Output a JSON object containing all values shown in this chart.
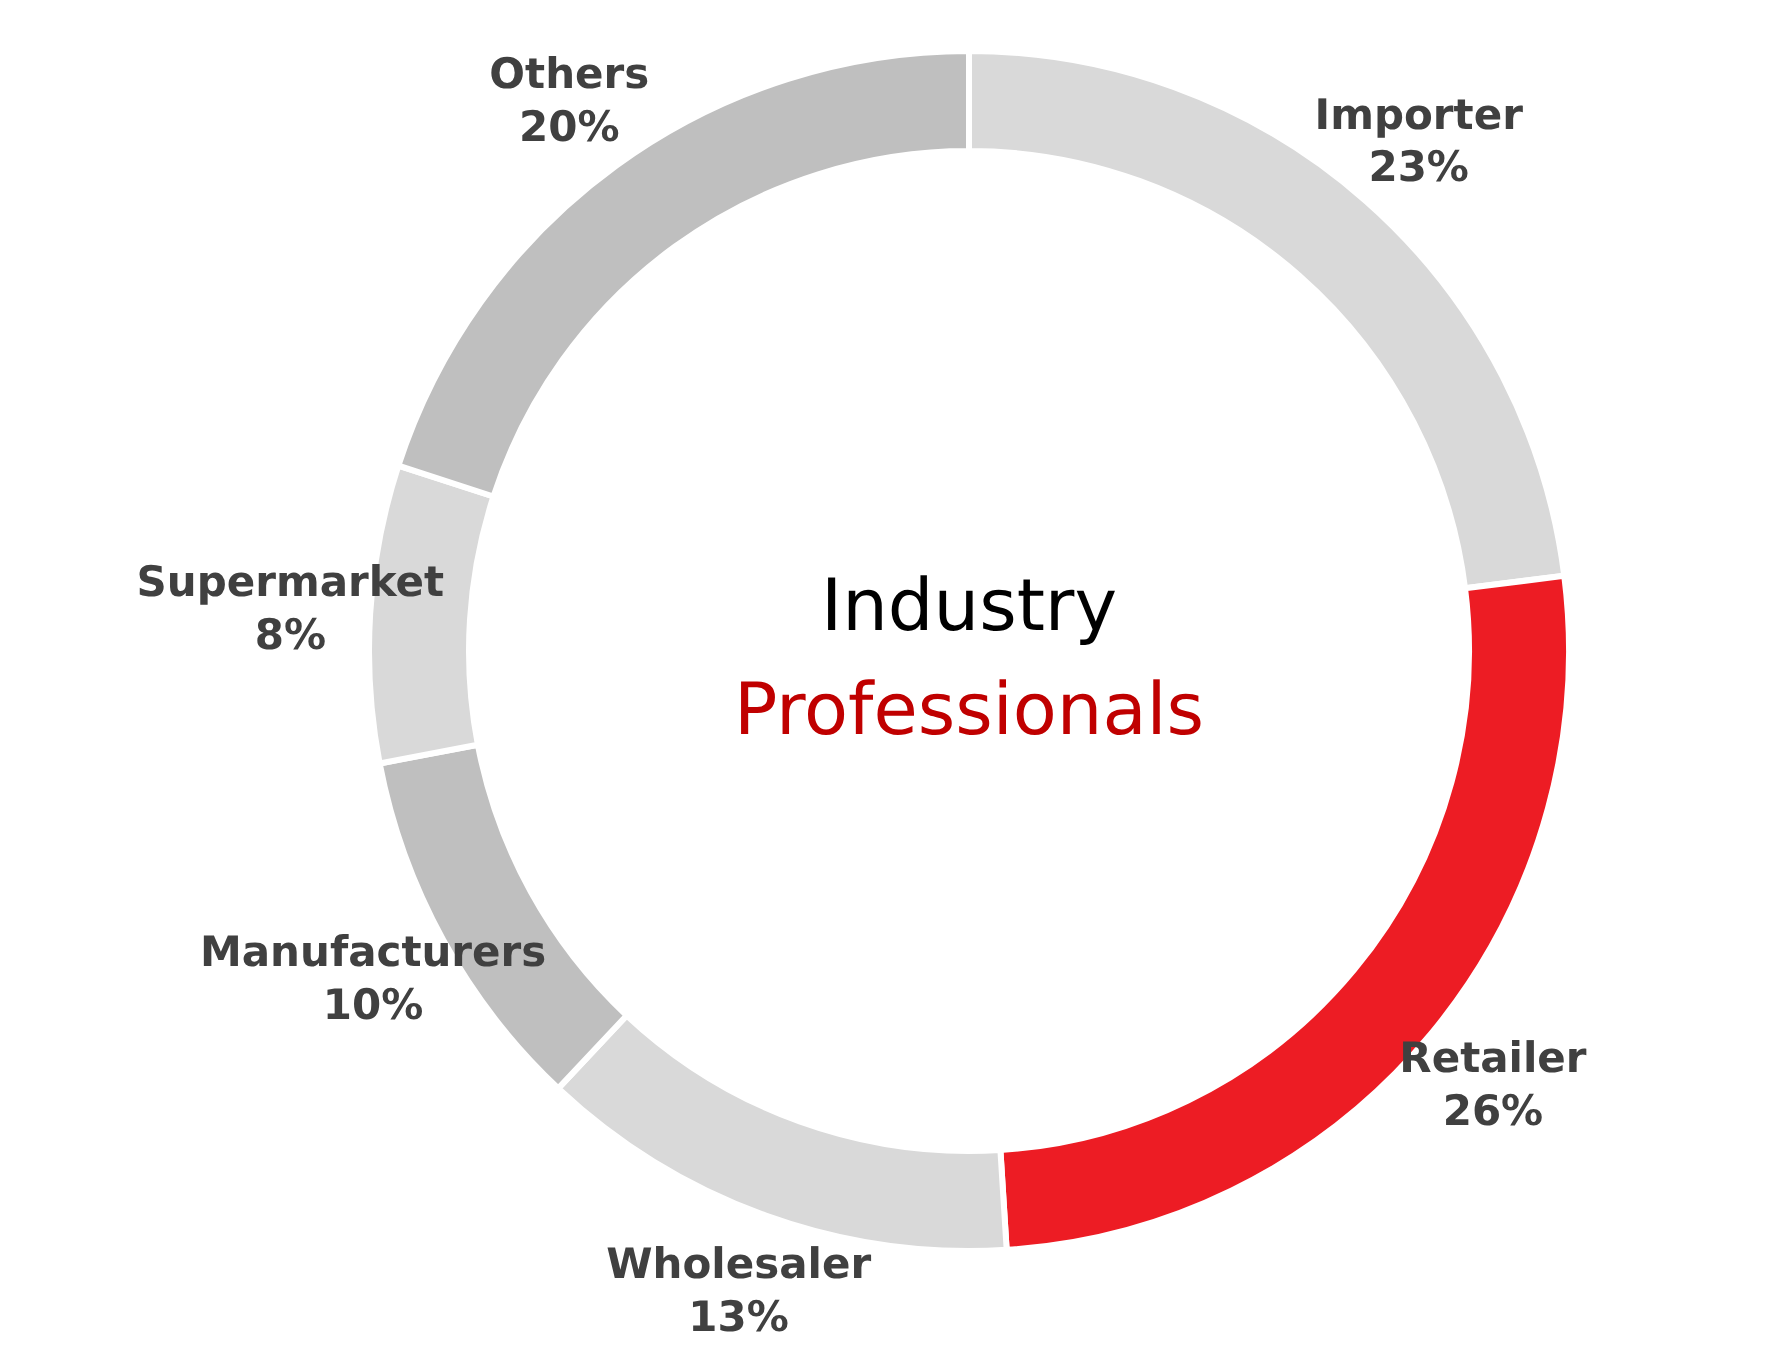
{
  "chart_data": {
    "type": "donut",
    "title": "Industry",
    "subtitle": "Professionals",
    "categories": [
      "Importer",
      "Retailer",
      "Wholesaler",
      "Manufacturers",
      "Supermarket",
      "Others"
    ],
    "values": [
      23,
      26,
      13,
      10,
      8,
      20
    ],
    "colors": [
      "#d9d9d9",
      "#ed1c24",
      "#d9d9d9",
      "#bfbfbf",
      "#d9d9d9",
      "#bfbfbf"
    ],
    "value_labels": [
      "23%",
      "26%",
      "13%",
      "10%",
      "8%",
      "20%"
    ]
  }
}
